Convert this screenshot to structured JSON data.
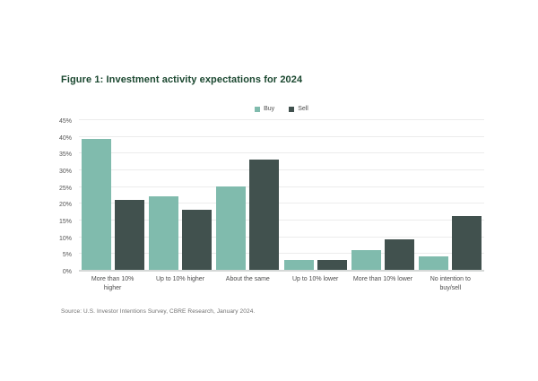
{
  "figure": {
    "title": "Figure 1: Investment activity expectations for 2024",
    "source": "Source: U.S. Investor Intentions Survey, CBRE Research, January 2024."
  },
  "colors": {
    "title_text": "#1A472F",
    "buy": "#80BBAD",
    "sell": "#41514E",
    "gridline": "#ECECEC",
    "axis_baseline": "#D5D8D7",
    "tick_text": "#555555",
    "label_text": "#4D4D4D",
    "source_text": "#707070"
  },
  "chart_data": {
    "type": "bar",
    "title": "Figure 1: Investment activity expectations for 2024",
    "categories": [
      "More than 10%\nhigher",
      "Up to 10% higher",
      "About the same",
      "Up to 10% lower",
      "More than 10% lower",
      "No intention to\nbuy/sell"
    ],
    "series": [
      {
        "name": "Buy",
        "color": "#80BBAD",
        "values": [
          39,
          22,
          25,
          3,
          6,
          4
        ]
      },
      {
        "name": "Sell",
        "color": "#41514E",
        "values": [
          21,
          18,
          33,
          3,
          9,
          16
        ]
      }
    ],
    "xlabel": "",
    "ylabel": "",
    "ylim": [
      0,
      45
    ],
    "y_tick_step": 5,
    "y_ticks": [
      "0%",
      "5%",
      "10%",
      "15%",
      "20%",
      "25%",
      "30%",
      "35%",
      "40%",
      "45%"
    ],
    "grid": true,
    "legend_position": "top-center"
  }
}
